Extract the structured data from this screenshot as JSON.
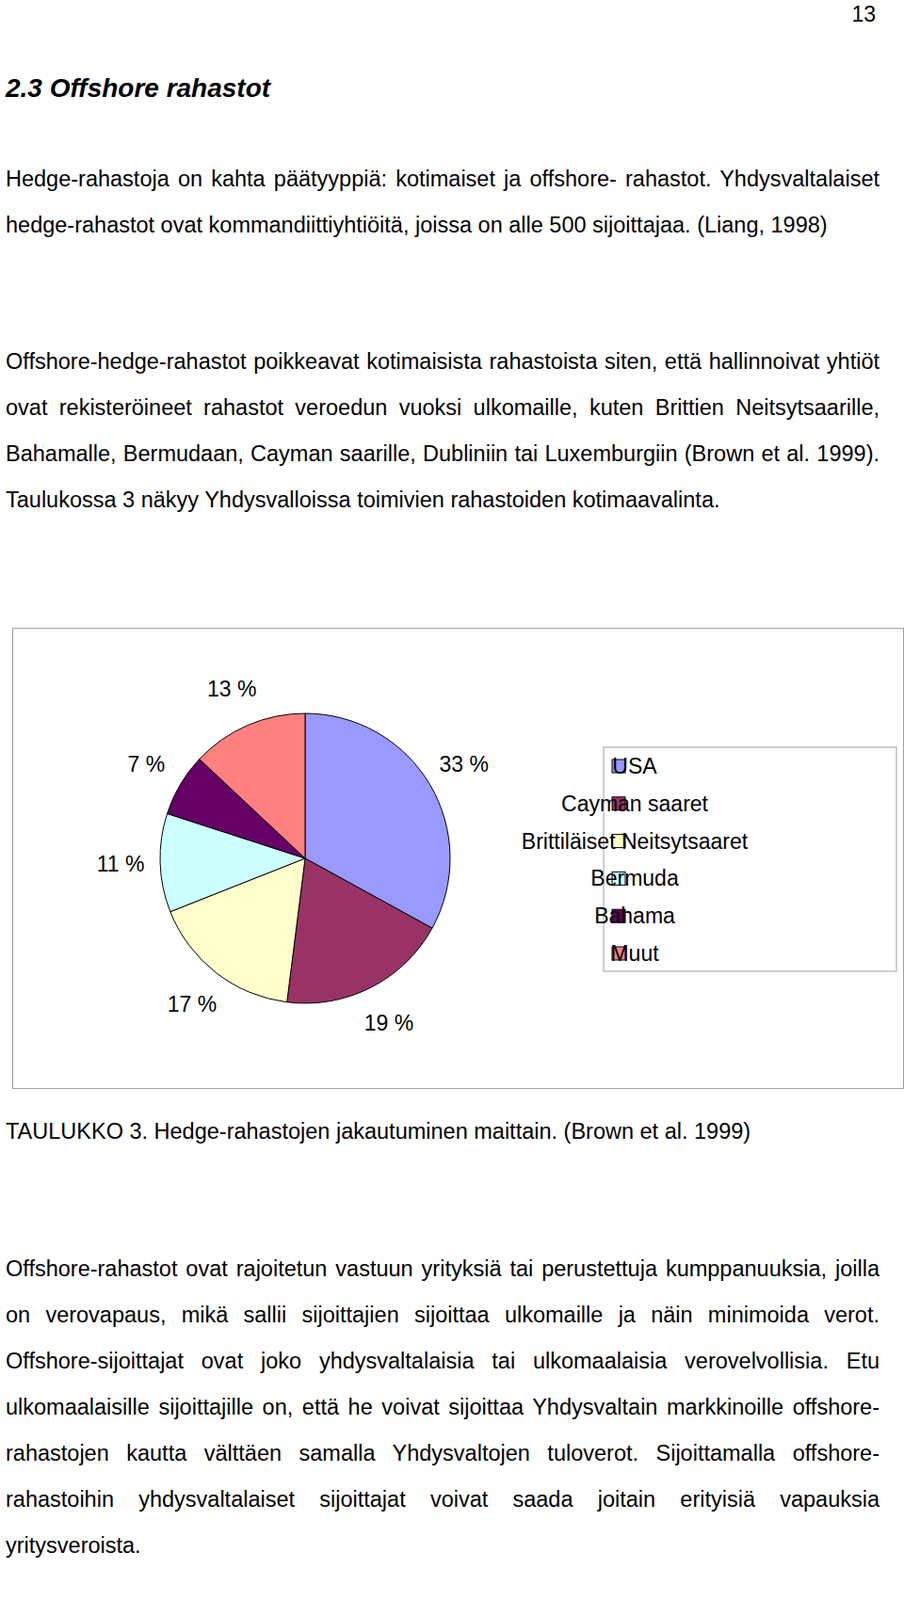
{
  "page_number": "13",
  "heading": "2.3  Offshore rahastot",
  "paragraphs_before": [
    "Hedge-rahastoja on kahta päätyyppiä: kotimaiset ja offshore- rahastot. Yhdysvaltalaiset hedge-rahastot ovat kommandiittiyhtiöitä, joissa on alle 500 sijoittajaa. (Liang, 1998)",
    "Offshore-hedge-rahastot poikkeavat kotimaisista rahastoista siten, että hallinnoivat yhtiöt ovat rekisteröineet rahastot veroedun vuoksi ulkomaille, kuten Brittien Neitsytsaarille, Bahamalle, Bermudaan, Cayman saarille, Dubliniin tai Luxemburgiin (Brown et al. 1999). Taulukossa 3 näkyy Yhdysvalloissa toimivien rahastoiden kotimaavalinta."
  ],
  "chart_data": {
    "type": "pie",
    "categories": [
      "USA",
      "Cayman saaret",
      "Brittiläiset Neitsytsaaret",
      "Bermuda",
      "Bahama",
      "Muut"
    ],
    "values": [
      33,
      19,
      17,
      11,
      7,
      13
    ],
    "value_labels": [
      "33 %",
      "19 %",
      "17 %",
      "11 %",
      "7 %",
      "13 %"
    ],
    "colors": [
      "#9999ff",
      "#993366",
      "#ffffcc",
      "#ccffff",
      "#660066",
      "#ff8080"
    ],
    "data_labels": true,
    "legend": "right"
  },
  "caption": "TAULUKKO 3. Hedge-rahastojen jakautuminen maittain. (Brown et al. 1999)",
  "paragraphs_after": [
    "Offshore-rahastot ovat rajoitetun vastuun yrityksiä tai perustettuja kumppanuuksia, joilla on verovapaus, mikä sallii sijoittajien sijoittaa ulkomaille ja näin minimoida verot. Offshore-sijoittajat ovat joko yhdysvaltalaisia tai ulkomaalaisia verovelvollisia. Etu ulkomaalaisille sijoittajille on, että he voivat sijoittaa Yhdysvaltain markkinoille offshore-rahastojen kautta välttäen samalla Yhdysvaltojen tuloverot. Sijoittamalla offshore-rahastoihin yhdysvaltalaiset sijoittajat voivat saada joitain erityisiä vapauksia yritysveroista."
  ]
}
